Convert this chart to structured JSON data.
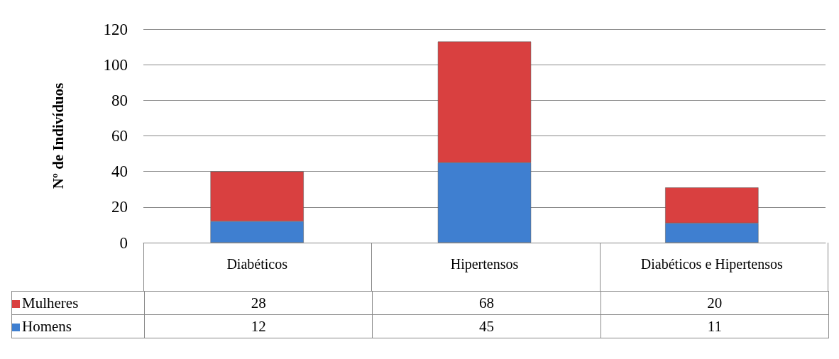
{
  "chart_data": {
    "type": "bar",
    "ylabel": "Nº de Indivíduos",
    "categories": [
      "Diabéticos",
      "Hipertensos",
      "Diabéticos e Hipertensos"
    ],
    "series": [
      {
        "name": "Homens",
        "color": "#3f7fd0",
        "values": [
          12,
          45,
          11
        ]
      },
      {
        "name": "Mulheres",
        "color": "#d94040",
        "values": [
          28,
          68,
          20
        ]
      }
    ],
    "stacked": true,
    "ylim": [
      0,
      120
    ],
    "yticks": [
      0,
      20,
      40,
      60,
      80,
      100,
      120
    ],
    "grid": "y",
    "legend": "bottom left",
    "data_labels": true
  }
}
